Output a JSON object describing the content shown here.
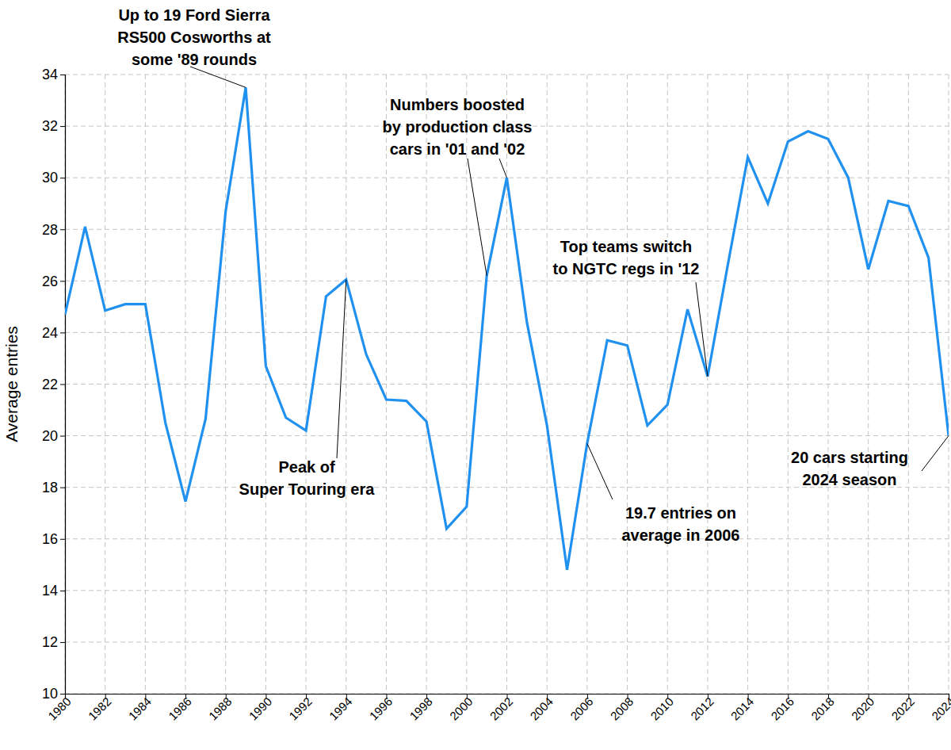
{
  "chart_data": {
    "type": "line",
    "y_label": "Average entries",
    "x": [
      1980,
      1981,
      1982,
      1983,
      1984,
      1985,
      1986,
      1987,
      1988,
      1989,
      1990,
      1991,
      1992,
      1993,
      1994,
      1995,
      1996,
      1997,
      1998,
      1999,
      2000,
      2001,
      2002,
      2003,
      2004,
      2005,
      2006,
      2007,
      2008,
      2009,
      2010,
      2011,
      2012,
      2013,
      2014,
      2015,
      2016,
      2017,
      2018,
      2019,
      2020,
      2021,
      2022,
      2023,
      2024
    ],
    "values": [
      24.7,
      28.1,
      24.85,
      25.1,
      25.1,
      20.5,
      17.45,
      20.65,
      28.7,
      33.5,
      22.7,
      20.7,
      20.2,
      25.4,
      26.05,
      23.15,
      21.4,
      21.35,
      20.55,
      16.4,
      17.25,
      26.2,
      30.0,
      24.4,
      20.4,
      14.8,
      19.7,
      23.7,
      23.5,
      20.4,
      21.2,
      24.9,
      22.3,
      26.6,
      30.8,
      29.0,
      31.4,
      31.8,
      31.5,
      30.0,
      26.45,
      29.1,
      28.9,
      26.9,
      20.0
    ],
    "color": "#2191f0",
    "xlim": [
      1980,
      2024
    ],
    "xticks": [
      1980,
      1982,
      1984,
      1986,
      1988,
      1990,
      1992,
      1994,
      1996,
      1998,
      2000,
      2002,
      2004,
      2006,
      2008,
      2010,
      2012,
      2014,
      2016,
      2018,
      2020,
      2022,
      2024
    ],
    "ylim": [
      10,
      34
    ],
    "yticks": [
      10,
      12,
      14,
      16,
      18,
      20,
      22,
      24,
      26,
      28,
      30,
      32,
      34
    ],
    "grid": true,
    "annotations": [
      {
        "text": [
          "Up to 19 Ford Sierra",
          "RS500 Cosworths at",
          "some '89 rounds"
        ],
        "x": [
          1989
        ]
      },
      {
        "text": [
          "Numbers boosted",
          "by production class",
          "cars in '01 and '02"
        ],
        "x": [
          2001,
          2002
        ]
      },
      {
        "text": [
          "Peak of",
          "Super Touring era"
        ],
        "x": [
          1994
        ]
      },
      {
        "text": [
          "19.7 entries on",
          "average in 2006"
        ],
        "x": [
          2006
        ]
      },
      {
        "text": [
          "Top teams switch",
          "to NGTC regs in '12"
        ],
        "x": [
          2012
        ]
      },
      {
        "text": [
          "20 cars starting",
          "2024 season"
        ],
        "x": [
          2024
        ]
      }
    ]
  }
}
